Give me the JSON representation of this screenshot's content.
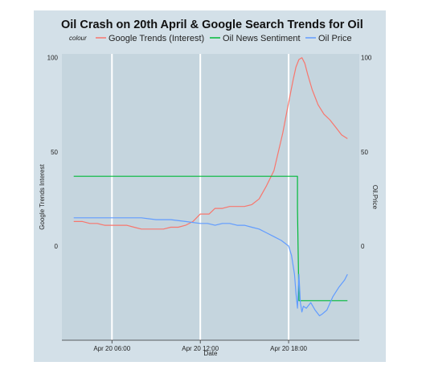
{
  "chart_data": {
    "type": "line",
    "title": "Oil Crash on 20th April & Google Search Trends for Oil",
    "legend_label": "colour",
    "legend_position": "top",
    "xlabel": "Date",
    "ylabel": "Google Trends Interest",
    "ylabel_right": "Oil.Price",
    "x_unit": "hour of Apr 20",
    "xlim": [
      2.6,
      22.8
    ],
    "ylim": [
      -50,
      102
    ],
    "x_ticks": [
      {
        "value": 6,
        "label": "Apr 20 06:00"
      },
      {
        "value": 12,
        "label": "Apr 20 12:00"
      },
      {
        "value": 18,
        "label": "Apr 20 18:00"
      }
    ],
    "y_ticks_left": [
      {
        "value": 100,
        "label": "100"
      },
      {
        "value": 50,
        "label": "50"
      },
      {
        "value": 0,
        "label": "0"
      }
    ],
    "y_ticks_right": [
      {
        "value": 100,
        "label": "100"
      },
      {
        "value": 50,
        "label": "50"
      },
      {
        "value": 0,
        "label": "0"
      }
    ],
    "grid": "vertical major lines only",
    "series": [
      {
        "name": "Google Trends (Interest)",
        "color": "#f8766d",
        "x": [
          3.4,
          4.0,
          4.5,
          5.0,
          5.5,
          6.0,
          6.5,
          7.0,
          7.5,
          8.0,
          8.5,
          9.0,
          9.5,
          10.0,
          10.5,
          11.0,
          11.5,
          12.0,
          12.3,
          12.6,
          13.0,
          13.5,
          14.0,
          14.5,
          15.0,
          15.5,
          16.0,
          16.5,
          17.0,
          17.3,
          17.6,
          17.9,
          18.1,
          18.3,
          18.5,
          18.7,
          18.9,
          19.1,
          19.3,
          19.6,
          20.0,
          20.4,
          20.8,
          21.2,
          21.6,
          22.0
        ],
        "values": [
          13,
          13,
          12,
          12,
          11,
          11,
          11,
          11,
          10,
          9,
          9,
          9,
          9,
          10,
          10,
          11,
          13,
          17,
          17,
          17,
          20,
          20,
          21,
          21,
          21,
          22,
          25,
          32,
          40,
          50,
          60,
          72,
          80,
          88,
          95,
          99,
          100,
          97,
          91,
          83,
          75,
          70,
          67,
          63,
          59,
          57
        ]
      },
      {
        "name": "Oil News Sentiment",
        "color": "#00ba38",
        "x": [
          3.4,
          18.6,
          18.6,
          18.7,
          22.0
        ],
        "values": [
          37,
          37,
          20,
          -29,
          -29
        ]
      },
      {
        "name": "Oil Price",
        "color": "#619cff",
        "x": [
          3.4,
          4.0,
          5.0,
          6.0,
          7.0,
          8.0,
          9.0,
          10.0,
          11.0,
          12.0,
          12.5,
          13.0,
          13.5,
          14.0,
          14.5,
          15.0,
          15.5,
          16.0,
          16.5,
          17.0,
          17.5,
          18.0,
          18.2,
          18.4,
          18.5,
          18.6,
          18.7,
          18.8,
          18.9,
          19.0,
          19.2,
          19.5,
          19.8,
          20.1,
          20.3,
          20.6,
          21.0,
          21.4,
          21.8,
          22.0
        ],
        "values": [
          15,
          15,
          15,
          15,
          15,
          15,
          14,
          14,
          13,
          12,
          12,
          11,
          12,
          12,
          11,
          11,
          10,
          9,
          7,
          5,
          3,
          0,
          -5,
          -15,
          -25,
          -33,
          -15,
          -30,
          -35,
          -32,
          -33,
          -30,
          -34,
          -37,
          -36,
          -34,
          -27,
          -22,
          -18,
          -15
        ]
      }
    ]
  }
}
